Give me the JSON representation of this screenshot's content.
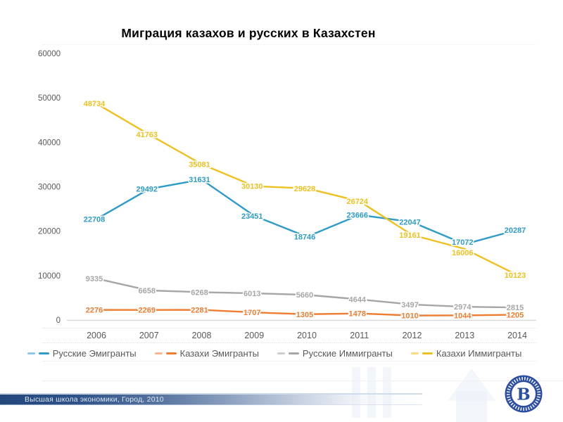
{
  "title": "Миграция казахов и русских в Казахстен",
  "chart_data": {
    "type": "line",
    "title": "Миграция казахов и русских в Казахстен",
    "x": [
      2006,
      2007,
      2008,
      2009,
      2010,
      2011,
      2012,
      2013,
      2014
    ],
    "xlabel": "",
    "ylabel": "",
    "ylim": [
      0,
      60000
    ],
    "yticks": [
      0,
      10000,
      20000,
      30000,
      40000,
      50000,
      60000
    ],
    "grid": false,
    "legend_position": "bottom",
    "data_labels": true,
    "axis_text_color": "#595959",
    "axis_line_color": "#d9d9d9",
    "series": [
      {
        "name": "Русские Эмигранты",
        "color": "#2E9BC9",
        "values": [
          22708,
          29492,
          31631,
          23451,
          18746,
          23666,
          22047,
          17072,
          20287
        ]
      },
      {
        "name": "Казахи Эмигранты",
        "color": "#ED7D31",
        "values": [
          2276,
          2269,
          2281,
          1707,
          1305,
          1478,
          1010,
          1044,
          1205
        ]
      },
      {
        "name": "Русские Иммигранты",
        "color": "#A6A6A6",
        "values": [
          9335,
          6658,
          6268,
          6013,
          5660,
          4644,
          3497,
          2974,
          2815
        ]
      },
      {
        "name": "Казахи Иммигранты",
        "color": "#EDC120",
        "values": [
          48734,
          41763,
          35081,
          30130,
          29628,
          26724,
          19161,
          16006,
          10123
        ]
      }
    ]
  },
  "footer": {
    "text": "Высшая школа экономики, Город, 2010"
  },
  "logo": {
    "monogram": "В"
  }
}
